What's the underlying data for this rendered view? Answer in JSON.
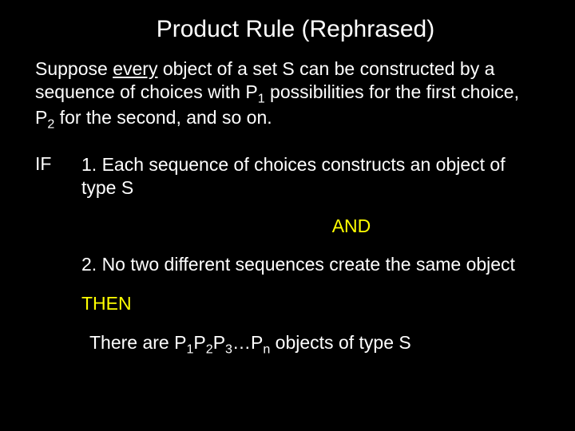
{
  "title": "Product Rule (Rephrased)",
  "intro_prefix": "Suppose ",
  "intro_every": "every",
  "intro_rest1": " object of a set S can be constructed by a sequence of choices with P",
  "intro_sub1": "1",
  "intro_rest2": " possibilities for the first choice, P",
  "intro_sub2": "2",
  "intro_rest3": " for the second, and so on.",
  "if_label": "IF",
  "cond1": "1. Each sequence of choices constructs an object of type S",
  "and": "AND",
  "cond2": "2. No two different sequences create the same object",
  "then": "THEN",
  "concl_prefix": "There are P",
  "concl_s1": "1",
  "concl_p2": "P",
  "concl_s2": "2",
  "concl_p3": "P",
  "concl_s3": "3",
  "concl_dots": "…P",
  "concl_sn": "n",
  "concl_suffix": " objects of type S",
  "colors": {
    "background": "#000000",
    "text": "#ffffff",
    "accent": "#ffff00"
  }
}
